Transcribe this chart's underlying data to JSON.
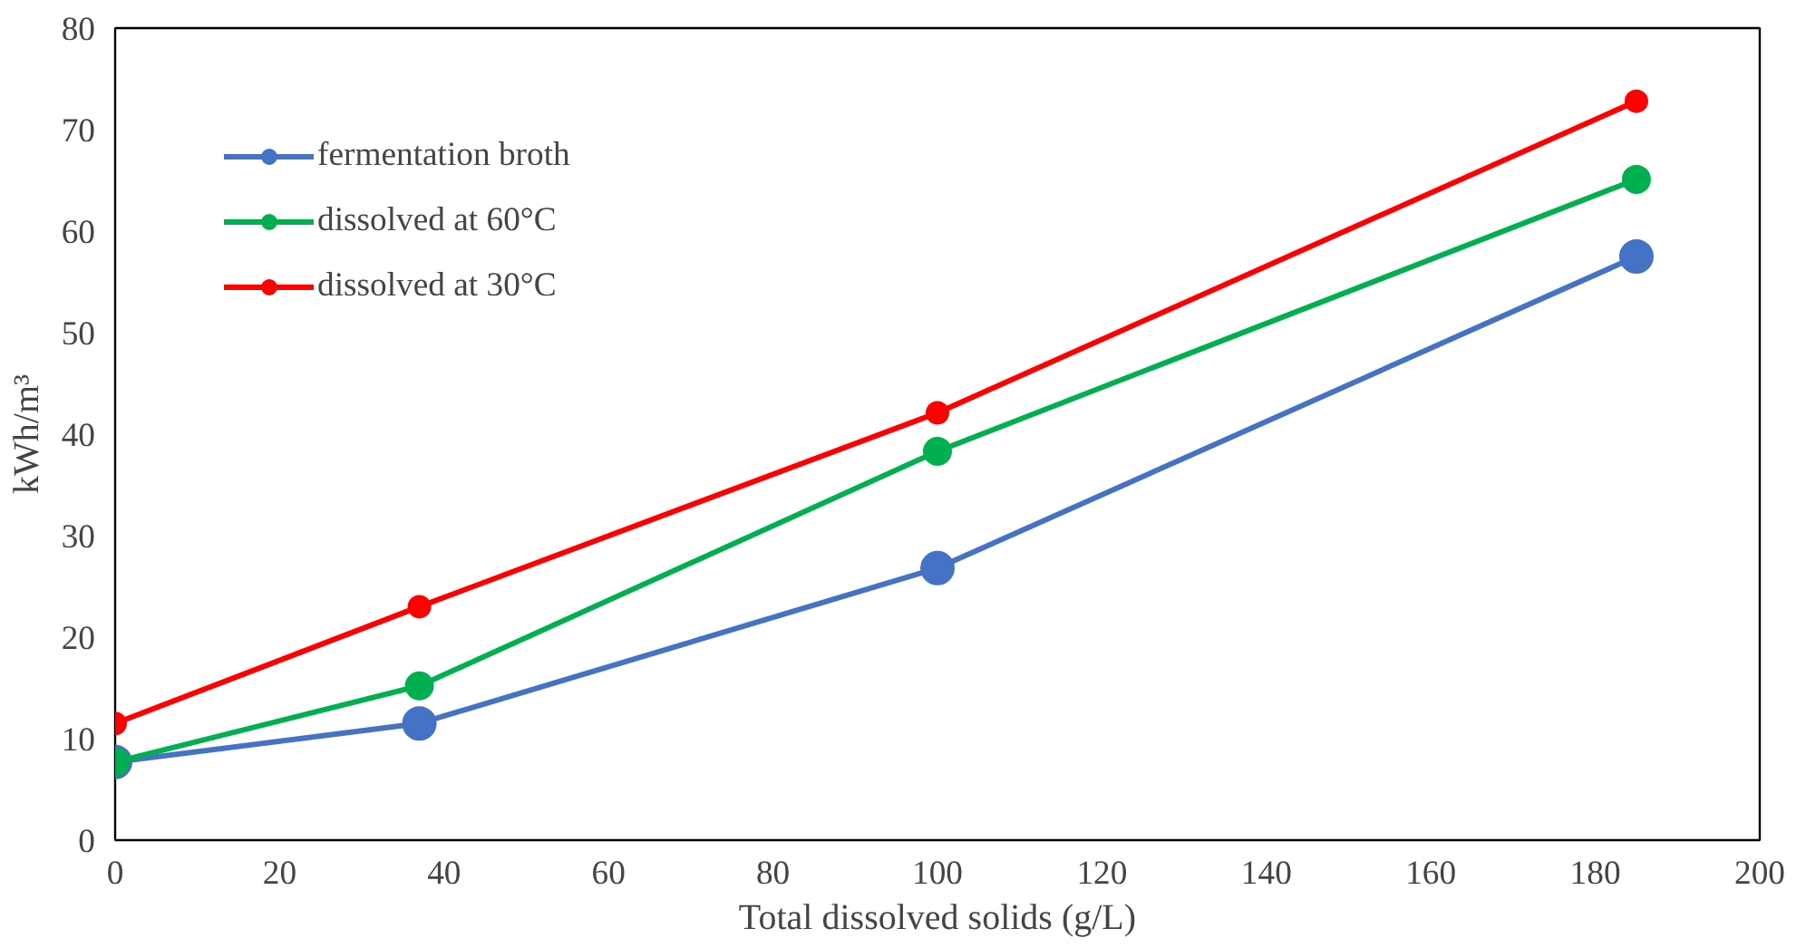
{
  "chart_data": {
    "type": "line",
    "xlabel": "Total dissolved solids (g/L)",
    "ylabel": "kWh/m³",
    "x": [
      0,
      37,
      100,
      185
    ],
    "series": [
      {
        "name": "fermentation broth",
        "color": "#4472c4",
        "values": [
          7.7,
          11.5,
          26.8,
          57.5
        ]
      },
      {
        "name": "dissolved at 60°C",
        "color": "#00b050",
        "values": [
          7.7,
          15.2,
          38.3,
          65.1
        ]
      },
      {
        "name": "dissolved at 30°C",
        "color": "#ff0000",
        "values": [
          11.5,
          23.0,
          42.1,
          72.8
        ]
      }
    ],
    "xlim": [
      0,
      200
    ],
    "xticks": [
      0,
      20,
      40,
      60,
      80,
      100,
      120,
      140,
      160,
      180,
      200
    ],
    "ylim": [
      0,
      80
    ],
    "yticks": [
      0,
      10,
      20,
      30,
      40,
      50,
      60,
      70,
      80
    ],
    "grid": false,
    "legend": "top left",
    "marker": "circle",
    "line_style": "solid"
  }
}
